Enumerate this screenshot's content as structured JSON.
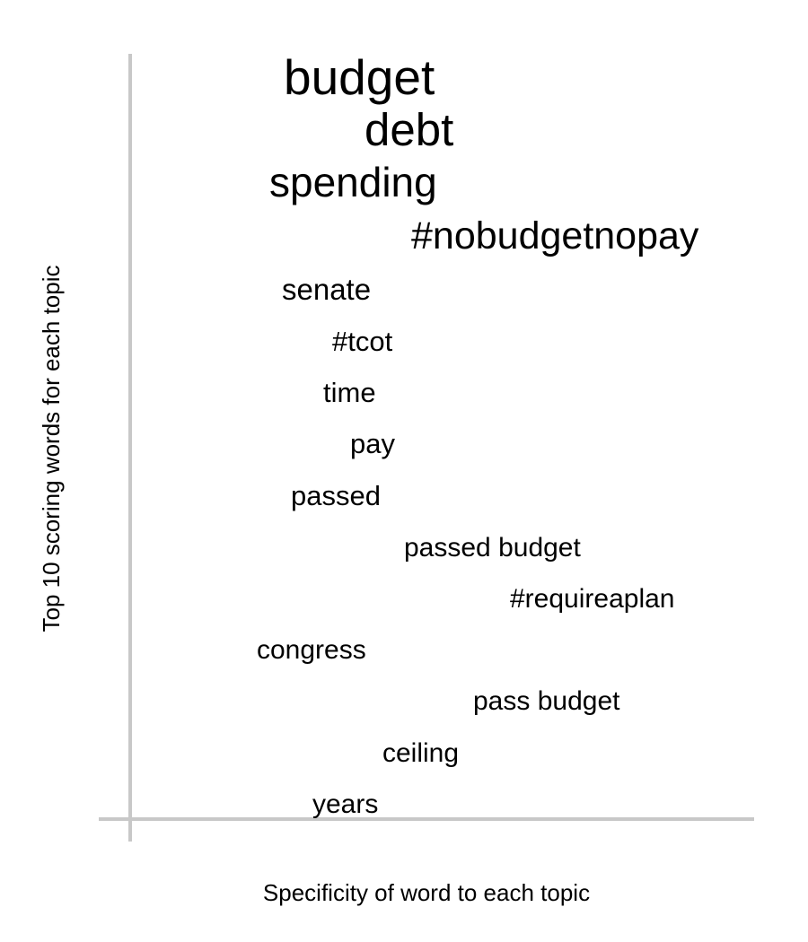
{
  "chart_data": {
    "type": "scatter",
    "xlabel": "Specificity of word to each topic",
    "ylabel": "Top 10 scoring words for each topic",
    "words": [
      {
        "text": "budget",
        "weight": 1.0
      },
      {
        "text": "debt",
        "weight": 0.93
      },
      {
        "text": "spending",
        "weight": 0.86
      },
      {
        "text": "#nobudgetnopay",
        "weight": 0.8
      },
      {
        "text": "senate",
        "weight": 0.65
      },
      {
        "text": "#tcot",
        "weight": 0.62
      },
      {
        "text": "time",
        "weight": 0.62
      },
      {
        "text": "pay",
        "weight": 0.62
      },
      {
        "text": "passed",
        "weight": 0.62
      },
      {
        "text": "passed budget",
        "weight": 0.6
      },
      {
        "text": "#requireaplan",
        "weight": 0.6
      },
      {
        "text": "congress",
        "weight": 0.6
      },
      {
        "text": "pass budget",
        "weight": 0.6
      },
      {
        "text": "ceiling",
        "weight": 0.6
      },
      {
        "text": "years",
        "weight": 0.6
      }
    ],
    "grid": false,
    "legend": "none",
    "colors": {
      "axis": "#c8c8c8",
      "text": "#000000"
    }
  }
}
